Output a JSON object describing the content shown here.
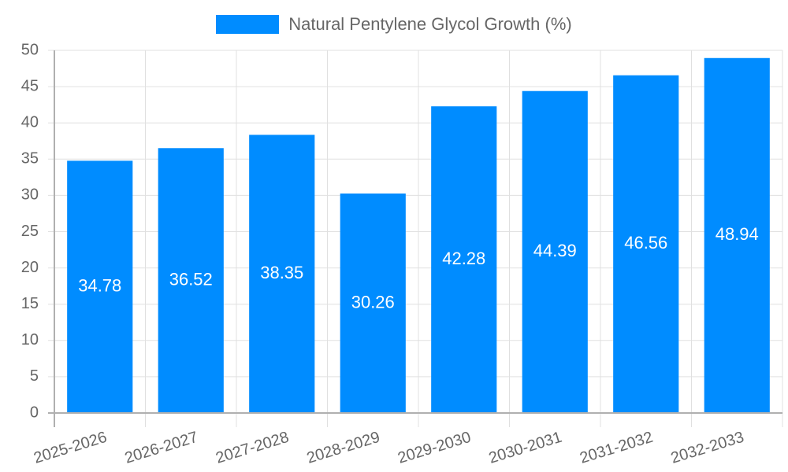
{
  "chart_data": {
    "type": "bar",
    "title": "",
    "xlabel": "",
    "ylabel": "",
    "categories": [
      "2025-2026",
      "2026-2027",
      "2027-2028",
      "2028-2029",
      "2029-2030",
      "2030-2031",
      "2031-2032",
      "2032-2033"
    ],
    "series": [
      {
        "name": "Natural Pentylene Glycol Growth (%)",
        "color": "#008cff",
        "values": [
          34.78,
          36.52,
          38.35,
          30.26,
          42.28,
          44.39,
          46.56,
          48.94
        ]
      }
    ],
    "ylim": [
      0,
      50
    ],
    "yticks": [
      0,
      5,
      10,
      15,
      20,
      25,
      30,
      35,
      40,
      45,
      50
    ],
    "grid": true,
    "legend_position": "top",
    "data_labels": true
  },
  "legend": {
    "label": "Natural Pentylene Glycol Growth (%)",
    "color": "#008cff"
  }
}
